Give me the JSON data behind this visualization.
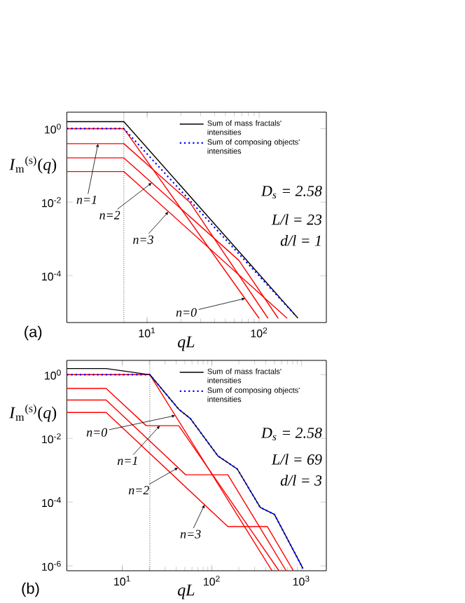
{
  "chart_data": [
    {
      "type": "line",
      "log": "xy",
      "xlim": [
        1.92,
        398
      ],
      "ylim": [
        5.3e-06,
        2.8
      ],
      "xlabel": "qL",
      "ylabel": "*I*$_{m}$$^{(s)}$(*q*)",
      "legend": "top right",
      "xticks": [
        {
          "value": 10,
          "label": "10$^{1}$"
        },
        {
          "value": 100,
          "label": "10$^{2}$"
        }
      ],
      "yticks": [
        {
          "value": 1,
          "label": "10$^{0}$"
        },
        {
          "value": 0.01,
          "label": "10$^{-2}$"
        },
        {
          "value": 0.0001,
          "label": "10$^{-4}$"
        }
      ],
      "series": [
        {
          "name": "Sum of mass fractals' intensities",
          "color": "#000000",
          "x": [
            1.92,
            6.2,
            222
          ],
          "values": [
            1.55,
            1.55,
            7e-06
          ]
        },
        {
          "name": "Sum of composing objects' intensities",
          "color": "#0000ff",
          "line_style": "dotted",
          "x": [
            1.92,
            6.2,
            213
          ],
          "values": [
            1,
            1,
            8e-06
          ]
        },
        {
          "color": "#ff0000",
          "x": [
            1.92,
            6.2,
            100
          ],
          "values": [
            1,
            1,
            6.9e-06
          ]
        },
        {
          "color": "#ff0000",
          "x": [
            1.92,
            6.2,
            24,
            120
          ],
          "values": [
            0.39,
            0.39,
            0.01,
            6.9e-06
          ]
        },
        {
          "color": "#ff0000",
          "x": [
            1.92,
            6.2,
            66,
            148
          ],
          "values": [
            0.16,
            0.16,
            0.00026,
            6.9e-06
          ]
        },
        {
          "color": "#ff0000",
          "x": [
            1.92,
            6.2,
            178
          ],
          "values": [
            0.068,
            0.068,
            6.9e-06
          ]
        }
      ],
      "ref_lines": [
        {
          "axis": "x",
          "value": 6.2,
          "color": "#000000",
          "line_style": "dotted"
        }
      ],
      "annotations": [
        {
          "text": "n=1",
          "x": 3.65,
          "y": 0.39
        },
        {
          "text": "n=2",
          "x": 11,
          "y": 0.0335
        },
        {
          "text": "n=3",
          "x": 15.5,
          "y": 0.0055
        },
        {
          "text": "n=0",
          "x": 75,
          "y": 2.4e-05
        },
        "(a)",
        "D$_{s}$ = 2.58",
        "L/l = 23",
        "d/l = 1"
      ]
    },
    {
      "type": "line",
      "log": "xy",
      "xlim": [
        2.4,
        1900
      ],
      "ylim": [
        7e-07,
        2.8
      ],
      "xlabel": "qL",
      "ylabel": "*I*$_{m}$$^{(s)}$(*q*)",
      "legend": "top right",
      "xticks": [
        {
          "value": 10,
          "label": "10$^{1}$"
        },
        {
          "value": 100,
          "label": "10$^{2}$"
        },
        {
          "value": 1000,
          "label": "10$^{3}$"
        }
      ],
      "yticks": [
        {
          "value": 1,
          "label": "10$^{0}$"
        },
        {
          "value": 0.01,
          "label": "10$^{-2}$"
        },
        {
          "value": 0.0001,
          "label": "10$^{-4}$"
        },
        {
          "value": 1e-06,
          "label": "10$^{-6}$"
        }
      ],
      "series": [
        {
          "name": "Sum of mass fractals' intensities",
          "color": "#000000",
          "x": [
            2.4,
            6.6,
            20.3,
            42.7,
            57.5,
            117,
            192,
            347,
            500,
            1040
          ],
          "values": [
            1.55,
            1.55,
            1,
            0.082,
            0.042,
            0.0028,
            0.0011,
            6.8e-05,
            4.1e-05,
            8.3e-07
          ]
        },
        {
          "name": "Sum of composing objects' intensities",
          "color": "#0000ff",
          "line_style": "dotted",
          "x": [
            2.4,
            20.3,
            42.7,
            57.5,
            117,
            192,
            347,
            500,
            1040
          ],
          "values": [
            1,
            1,
            0.082,
            0.042,
            0.0028,
            0.0011,
            6.8e-05,
            4.1e-05,
            8.3e-07
          ]
        },
        {
          "color": "#ff0000",
          "x": [
            2.4,
            20.3,
            470
          ],
          "values": [
            1,
            1,
            7e-07
          ]
        },
        {
          "color": "#ff0000",
          "x": [
            2.4,
            6.6,
            18.5,
            42.7,
            562
          ],
          "values": [
            0.37,
            0.37,
            0.025,
            0.025,
            7e-07
          ]
        },
        {
          "color": "#ff0000",
          "x": [
            2.4,
            6.6,
            51,
            151,
            676
          ],
          "values": [
            0.16,
            0.16,
            0.00072,
            0.00072,
            7e-07
          ]
        },
        {
          "color": "#ff0000",
          "x": [
            2.4,
            6.6,
            151,
            417,
            813
          ],
          "values": [
            0.065,
            0.065,
            1.7e-05,
            1.7e-05,
            7e-07
          ]
        }
      ],
      "ref_lines": [
        {
          "axis": "x",
          "value": 20.3,
          "color": "#000000",
          "line_style": "dotted"
        }
      ],
      "annotations": [
        {
          "text": "n=0",
          "x": 39,
          "y": 0.052
        },
        {
          "text": "n=1",
          "x": 26.3,
          "y": 0.025
        },
        {
          "text": "n=2",
          "x": 42,
          "y": 0.0012
        },
        {
          "text": "n=3",
          "x": 83,
          "y": 8.3e-05
        },
        "(b)",
        "D$_{s}$ = 2.58",
        "L/l = 69",
        "d/l = 3"
      ]
    }
  ]
}
